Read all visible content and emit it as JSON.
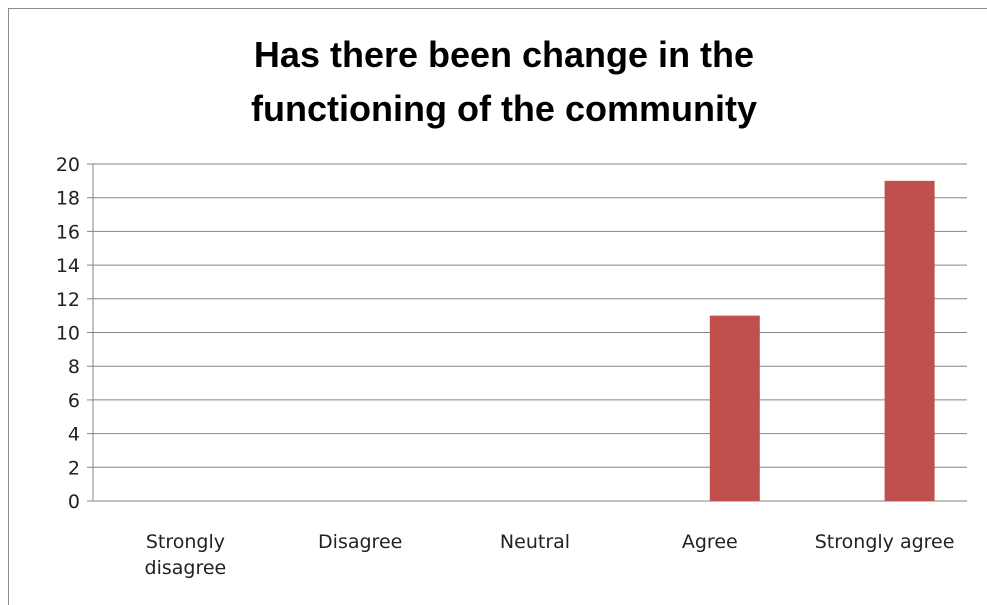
{
  "chart_data": {
    "type": "bar",
    "title_lines": [
      "Has there been change in the",
      "functioning  of the community"
    ],
    "categories": [
      [
        "Strongly",
        "disagree"
      ],
      [
        "Disagree"
      ],
      [
        "Neutral"
      ],
      [
        "Agree"
      ],
      [
        "Strongly agree"
      ]
    ],
    "series": [
      {
        "values": [
          0,
          0,
          0,
          11,
          19
        ]
      }
    ],
    "ylim": [
      0,
      20
    ],
    "yticks": [
      0,
      2,
      4,
      6,
      8,
      10,
      12,
      14,
      16,
      18,
      20
    ],
    "grid": true,
    "legend": "none",
    "colors": {
      "bar": "#c0504d",
      "grid": "#868686",
      "axis": "#868686"
    }
  }
}
